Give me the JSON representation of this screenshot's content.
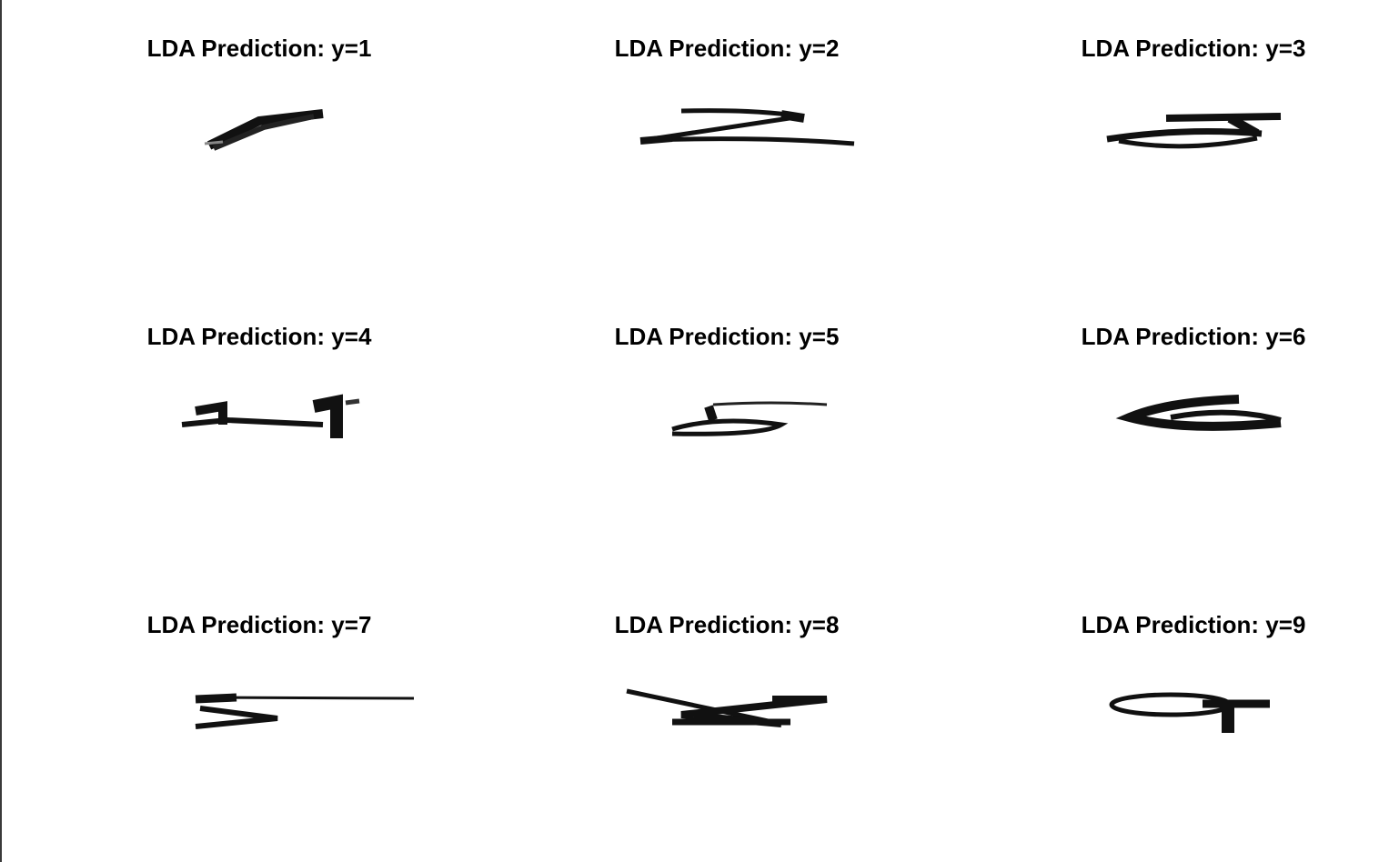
{
  "figure": {
    "panels": [
      {
        "title": "LDA Prediction: y=1",
        "digit_icon": "handwritten-digit-1"
      },
      {
        "title": "LDA Prediction: y=2",
        "digit_icon": "handwritten-digit-2"
      },
      {
        "title": "LDA Prediction: y=3",
        "digit_icon": "handwritten-digit-3"
      },
      {
        "title": "LDA Prediction: y=4",
        "digit_icon": "handwritten-digit-4"
      },
      {
        "title": "LDA Prediction: y=5",
        "digit_icon": "handwritten-digit-5"
      },
      {
        "title": "LDA Prediction: y=6",
        "digit_icon": "handwritten-digit-6"
      },
      {
        "title": "LDA Prediction: y=7",
        "digit_icon": "handwritten-digit-7"
      },
      {
        "title": "LDA Prediction: y=8",
        "digit_icon": "handwritten-digit-8"
      },
      {
        "title": "LDA Prediction: y=9",
        "digit_icon": "handwritten-digit-9"
      }
    ],
    "colors": {
      "background": "#ffffff",
      "ink": "#111111"
    }
  }
}
